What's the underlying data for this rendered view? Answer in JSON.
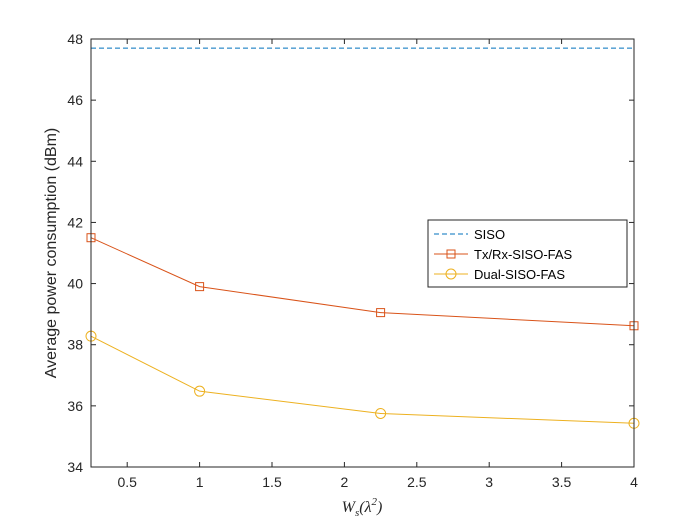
{
  "chart_data": {
    "type": "line",
    "title": "",
    "xlabel": "W_s(λ²)",
    "xlabel_parts": {
      "main": "W",
      "sub": "s",
      "paren_open": "(λ",
      "sup": "2",
      "paren_close": ")"
    },
    "ylabel": "Average power consumption (dBm)",
    "xlim": [
      0.25,
      4
    ],
    "ylim": [
      34,
      48
    ],
    "xticks": [
      0.5,
      1,
      1.5,
      2,
      2.5,
      3,
      3.5,
      4
    ],
    "xtick_labels": [
      "0.5",
      "1",
      "1.5",
      "2",
      "2.5",
      "3",
      "3.5",
      "4"
    ],
    "yticks": [
      34,
      36,
      38,
      40,
      42,
      44,
      46,
      48
    ],
    "ytick_labels": [
      "34",
      "36",
      "38",
      "40",
      "42",
      "44",
      "46",
      "48"
    ],
    "grid": false,
    "legend_position": "right",
    "series": [
      {
        "name": "SISO",
        "style": "dashed",
        "marker": "none",
        "color": "#0072BD",
        "x": [
          0.25,
          4
        ],
        "y": [
          47.7,
          47.7
        ]
      },
      {
        "name": "Tx/Rx-SISO-FAS",
        "style": "solid",
        "marker": "square",
        "color": "#D95319",
        "x": [
          0.25,
          1,
          2.25,
          4
        ],
        "y": [
          41.5,
          39.9,
          39.05,
          38.62
        ]
      },
      {
        "name": "Dual-SISO-FAS",
        "style": "solid",
        "marker": "circle",
        "color": "#EDB120",
        "x": [
          0.25,
          1,
          2.25,
          4
        ],
        "y": [
          38.28,
          36.48,
          35.75,
          35.43
        ]
      }
    ]
  }
}
